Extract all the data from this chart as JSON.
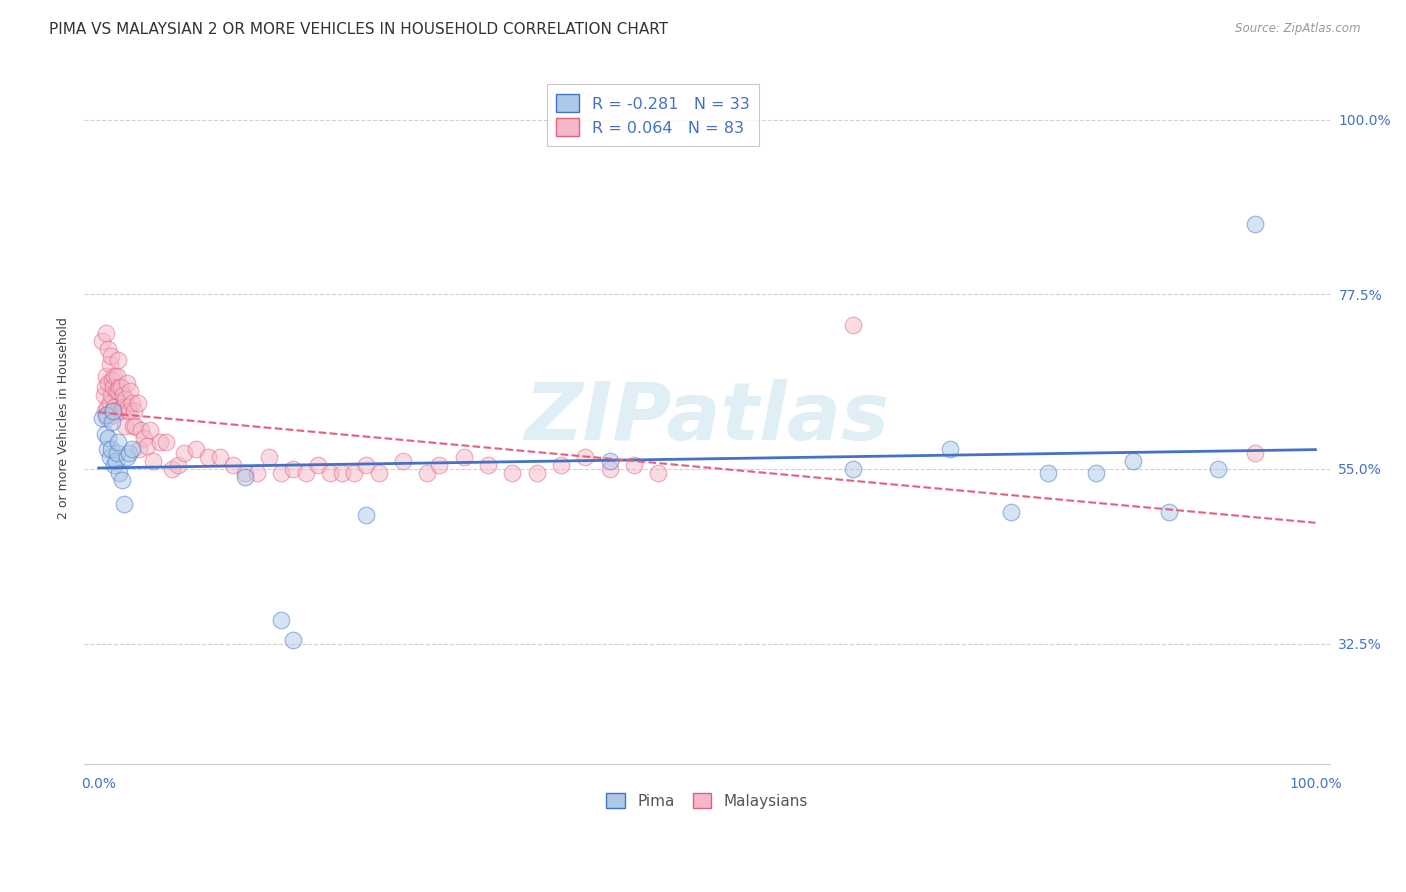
{
  "title": "PIMA VS MALAYSIAN 2 OR MORE VEHICLES IN HOUSEHOLD CORRELATION CHART",
  "source": "Source: ZipAtlas.com",
  "ylabel": "2 or more Vehicles in Household",
  "legend_labels": [
    "Pima",
    "Malaysians"
  ],
  "pima_R": -0.281,
  "pima_N": 33,
  "malaysian_R": 0.064,
  "malaysian_N": 83,
  "pima_color": "#adc8e8",
  "pima_line_color": "#4472c4",
  "pima_edge_color": "#4472c4",
  "malaysian_color": "#f4b8ca",
  "malaysian_line_color": "#e0607a",
  "malaysian_edge_color": "#e0607a",
  "watermark": "ZIPatlas",
  "xlim": [
    -0.012,
    1.012
  ],
  "ylim": [
    0.17,
    1.06
  ],
  "xtick_positions": [
    0.0,
    0.25,
    0.5,
    0.75,
    1.0
  ],
  "xtick_labels": [
    "0.0%",
    "",
    "",
    "",
    "100.0%"
  ],
  "ytick_right_values": [
    0.325,
    0.55,
    0.775,
    1.0
  ],
  "ytick_right_labels": [
    "32.5%",
    "55.0%",
    "77.5%",
    "100.0%"
  ],
  "pima_x": [
    0.003,
    0.005,
    0.006,
    0.007,
    0.008,
    0.009,
    0.01,
    0.011,
    0.012,
    0.013,
    0.014,
    0.015,
    0.016,
    0.017,
    0.019,
    0.021,
    0.023,
    0.025,
    0.027,
    0.12,
    0.15,
    0.16,
    0.22,
    0.42,
    0.62,
    0.7,
    0.75,
    0.78,
    0.82,
    0.85,
    0.88,
    0.92,
    0.95
  ],
  "pima_y": [
    0.615,
    0.595,
    0.62,
    0.575,
    0.59,
    0.565,
    0.575,
    0.61,
    0.625,
    0.555,
    0.56,
    0.57,
    0.585,
    0.545,
    0.535,
    0.505,
    0.565,
    0.57,
    0.575,
    0.54,
    0.355,
    0.33,
    0.49,
    0.56,
    0.55,
    0.575,
    0.495,
    0.545,
    0.545,
    0.56,
    0.495,
    0.55,
    0.865
  ],
  "malaysian_x": [
    0.003,
    0.004,
    0.005,
    0.005,
    0.006,
    0.006,
    0.007,
    0.007,
    0.008,
    0.008,
    0.009,
    0.009,
    0.01,
    0.01,
    0.011,
    0.011,
    0.012,
    0.012,
    0.013,
    0.013,
    0.014,
    0.015,
    0.015,
    0.016,
    0.016,
    0.017,
    0.018,
    0.018,
    0.019,
    0.02,
    0.021,
    0.022,
    0.022,
    0.023,
    0.024,
    0.025,
    0.026,
    0.027,
    0.028,
    0.029,
    0.03,
    0.032,
    0.033,
    0.035,
    0.037,
    0.04,
    0.042,
    0.045,
    0.05,
    0.055,
    0.06,
    0.065,
    0.07,
    0.08,
    0.09,
    0.1,
    0.11,
    0.12,
    0.13,
    0.14,
    0.15,
    0.16,
    0.17,
    0.18,
    0.19,
    0.2,
    0.21,
    0.22,
    0.23,
    0.25,
    0.27,
    0.28,
    0.3,
    0.32,
    0.34,
    0.36,
    0.38,
    0.4,
    0.42,
    0.44,
    0.46,
    0.62,
    0.95
  ],
  "malaysian_y": [
    0.715,
    0.645,
    0.625,
    0.655,
    0.67,
    0.725,
    0.615,
    0.63,
    0.66,
    0.705,
    0.635,
    0.685,
    0.645,
    0.695,
    0.625,
    0.665,
    0.62,
    0.655,
    0.63,
    0.67,
    0.65,
    0.625,
    0.67,
    0.65,
    0.69,
    0.655,
    0.625,
    0.655,
    0.63,
    0.645,
    0.63,
    0.64,
    0.605,
    0.66,
    0.63,
    0.625,
    0.65,
    0.635,
    0.605,
    0.625,
    0.605,
    0.635,
    0.575,
    0.6,
    0.59,
    0.58,
    0.6,
    0.56,
    0.585,
    0.585,
    0.55,
    0.555,
    0.57,
    0.575,
    0.565,
    0.565,
    0.555,
    0.545,
    0.545,
    0.565,
    0.545,
    0.55,
    0.545,
    0.555,
    0.545,
    0.545,
    0.545,
    0.555,
    0.545,
    0.56,
    0.545,
    0.555,
    0.565,
    0.555,
    0.545,
    0.545,
    0.555,
    0.565,
    0.55,
    0.555,
    0.545,
    0.735,
    0.57
  ],
  "background_color": "#ffffff",
  "grid_color": "#cccccc",
  "title_fontsize": 11,
  "axis_label_fontsize": 9,
  "tick_fontsize": 10,
  "marker_size": 12,
  "marker_alpha": 0.5
}
